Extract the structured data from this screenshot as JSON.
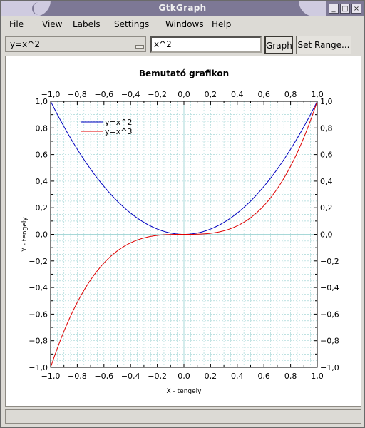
{
  "window": {
    "title": "GtkGraph"
  },
  "window_buttons": {
    "minimize": "_",
    "maximize": "□",
    "close": "×"
  },
  "menu": {
    "items": [
      {
        "label": "File"
      },
      {
        "label": "View"
      },
      {
        "label": "Labels"
      },
      {
        "label": "Settings"
      },
      {
        "label": "Windows"
      },
      {
        "label": "Help"
      }
    ]
  },
  "toolbar": {
    "function_select": "y=x^2",
    "function_input": "x^2",
    "graph_label": "Graph",
    "set_range_label": "Set Range..."
  },
  "chart_data": {
    "type": "line",
    "title": "Bemutató grafikon",
    "xlabel": "X - tengely",
    "ylabel": "Y - tengely",
    "xlim": [
      -1,
      1
    ],
    "ylim": [
      -1,
      1
    ],
    "grid": true,
    "legend_position": "top-left",
    "tick_labels": [
      "−1,0",
      "−0,8",
      "−0,6",
      "−0,4",
      "−0,2",
      "0,0",
      "0,2",
      "0,4",
      "0,6",
      "0,8",
      "1,0"
    ],
    "tick_values": [
      -1,
      -0.8,
      -0.6,
      -0.4,
      -0.2,
      0,
      0.2,
      0.4,
      0.6,
      0.8,
      1
    ],
    "series": [
      {
        "name": "y=x^2",
        "expr": "x^2",
        "color": "#0000c0"
      },
      {
        "name": "y=x^3",
        "expr": "x^3",
        "color": "#e00000"
      }
    ],
    "grid_color": "#a8d8d8",
    "axis_zero_color": "#a8d8d8"
  },
  "status": {
    "text": ""
  }
}
